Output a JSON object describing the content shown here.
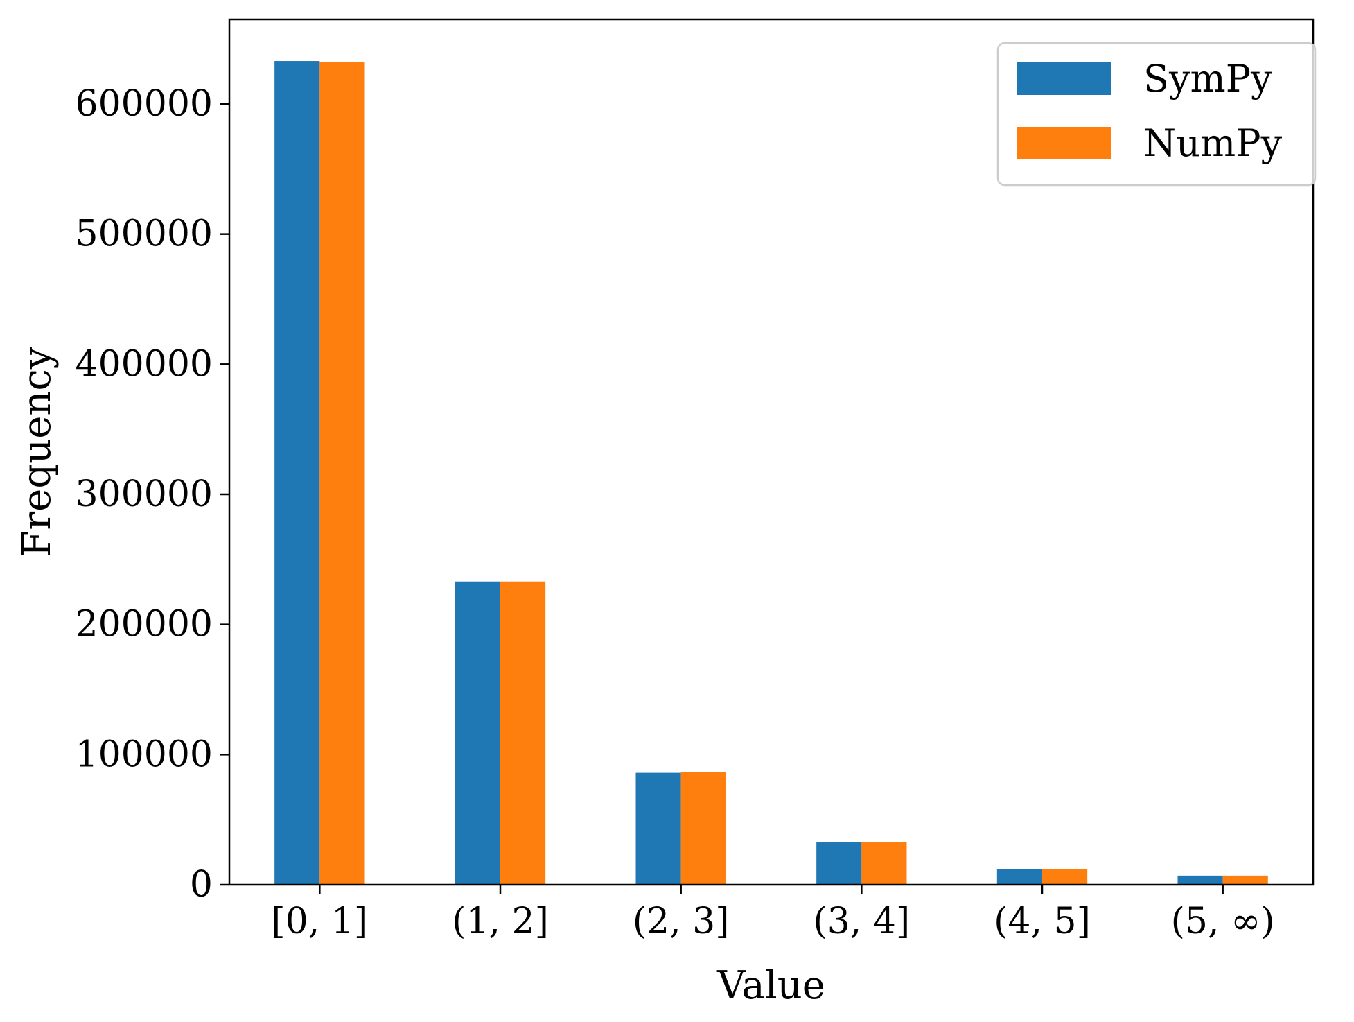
{
  "chart_data": {
    "type": "bar",
    "categories": [
      "[0, 1]",
      "(1, 2]",
      "(2, 3]",
      "(3, 4]",
      "(4, 5]",
      "(5, ∞)"
    ],
    "series": [
      {
        "name": "SymPy",
        "color": "#1f77b4",
        "values": [
          633000,
          233000,
          86000,
          32500,
          12000,
          7000
        ]
      },
      {
        "name": "NumPy",
        "color": "#ff7f0e",
        "values": [
          632500,
          233000,
          86500,
          32500,
          12000,
          7000
        ]
      }
    ],
    "xlabel": "Value",
    "ylabel": "Frequency",
    "ylim": [
      0,
      665000
    ],
    "yticks": [
      0,
      100000,
      200000,
      300000,
      400000,
      500000,
      600000
    ],
    "ytick_labels": [
      "0",
      "100000",
      "200000",
      "300000",
      "400000",
      "500000",
      "600000"
    ],
    "grid": false,
    "legend": "top-right"
  }
}
